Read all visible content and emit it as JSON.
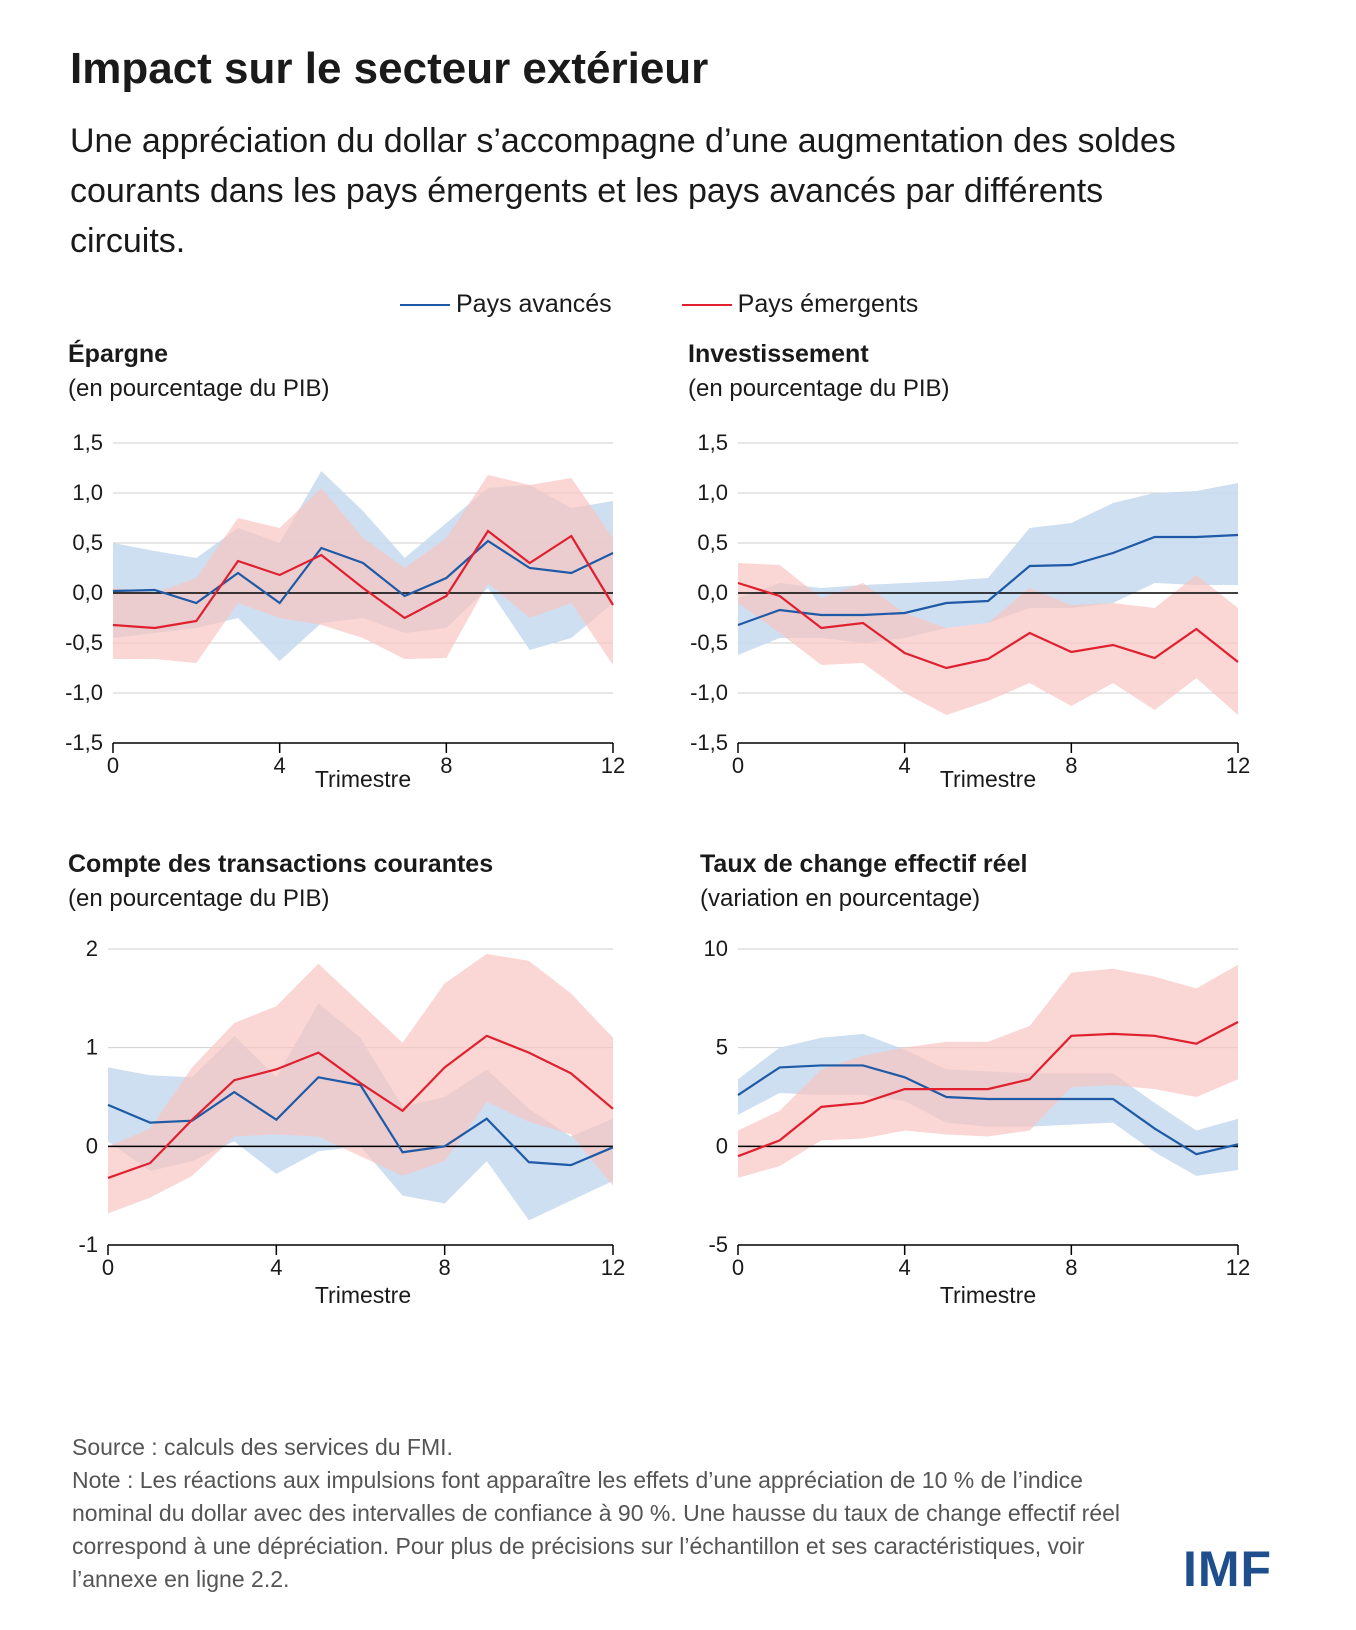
{
  "header": {
    "title": "Impact sur le secteur extérieur",
    "subtitle": "Une appréciation du dollar s’accompagne d’une augmentation des soldes courants dans les pays émergents et les pays avancés par différents circuits."
  },
  "legend": {
    "advanced": "Pays avancés",
    "emerging": "Pays émergents"
  },
  "colors": {
    "advanced_line": "#1f5aa6",
    "advanced_band": "#c5d9ee",
    "emerging_line": "#e0202f",
    "emerging_band": "#f8c4c2"
  },
  "chart_data": [
    {
      "type": "line",
      "title": "Épargne",
      "subtitle": "(en pourcentage du PIB)",
      "xlabel": "Trimestre",
      "x": [
        0,
        1,
        2,
        3,
        4,
        5,
        6,
        7,
        8,
        9,
        10,
        11,
        12
      ],
      "xticks": [
        0,
        4,
        8,
        12
      ],
      "xtick_labels": [
        "0",
        "4",
        "8",
        "12"
      ],
      "ylim": [
        -1.5,
        1.5
      ],
      "yticks": [
        -1.5,
        -1.0,
        -0.5,
        0.0,
        0.5,
        1.0,
        1.5
      ],
      "ytick_labels": [
        "-1,5",
        "-1,0",
        "-0,5",
        "0,0",
        "0,5",
        "1,0",
        "1,5"
      ],
      "series": [
        {
          "name": "Pays avancés",
          "values": [
            0.02,
            0.03,
            -0.1,
            0.2,
            -0.1,
            0.45,
            0.3,
            -0.03,
            0.15,
            0.52,
            0.25,
            0.2,
            0.4
          ],
          "lower": [
            -0.45,
            -0.4,
            -0.35,
            -0.25,
            -0.68,
            -0.3,
            -0.25,
            -0.4,
            -0.35,
            0.05,
            -0.57,
            -0.45,
            -0.1
          ],
          "upper": [
            0.5,
            0.42,
            0.35,
            0.65,
            0.5,
            1.22,
            0.82,
            0.35,
            0.7,
            1.05,
            1.08,
            0.85,
            0.92
          ]
        },
        {
          "name": "Pays émergents",
          "values": [
            -0.32,
            -0.35,
            -0.28,
            0.32,
            0.18,
            0.38,
            0.05,
            -0.25,
            -0.03,
            0.62,
            0.3,
            0.57,
            -0.12
          ],
          "lower": [
            -0.66,
            -0.66,
            -0.7,
            -0.1,
            -0.25,
            -0.32,
            -0.45,
            -0.66,
            -0.65,
            0.1,
            -0.25,
            -0.1,
            -0.72
          ],
          "upper": [
            0.05,
            0.0,
            0.15,
            0.75,
            0.65,
            1.05,
            0.55,
            0.25,
            0.55,
            1.18,
            1.08,
            1.15,
            0.55
          ]
        }
      ]
    },
    {
      "type": "line",
      "title": "Investissement",
      "subtitle": "(en pourcentage du PIB)",
      "xlabel": "Trimestre",
      "x": [
        0,
        1,
        2,
        3,
        4,
        5,
        6,
        7,
        8,
        9,
        10,
        11,
        12
      ],
      "xticks": [
        0,
        4,
        8,
        12
      ],
      "xtick_labels": [
        "0",
        "4",
        "8",
        "12"
      ],
      "ylim": [
        -1.5,
        1.5
      ],
      "yticks": [
        -1.5,
        -1.0,
        -0.5,
        0.0,
        0.5,
        1.0,
        1.5
      ],
      "ytick_labels": [
        "-1,5",
        "-1,0",
        "-0,5",
        "0,0",
        "0,5",
        "1,0",
        "1,5"
      ],
      "series": [
        {
          "name": "Pays avancés",
          "values": [
            -0.32,
            -0.17,
            -0.22,
            -0.22,
            -0.2,
            -0.1,
            -0.08,
            0.27,
            0.28,
            0.4,
            0.56,
            0.56,
            0.58
          ],
          "lower": [
            -0.62,
            -0.45,
            -0.45,
            -0.5,
            -0.45,
            -0.35,
            -0.3,
            -0.15,
            -0.15,
            -0.1,
            0.1,
            0.08,
            0.08
          ],
          "upper": [
            -0.05,
            0.1,
            0.05,
            0.08,
            0.1,
            0.12,
            0.15,
            0.65,
            0.7,
            0.9,
            1.0,
            1.02,
            1.1
          ]
        },
        {
          "name": "Pays émergents",
          "values": [
            0.1,
            -0.03,
            -0.35,
            -0.3,
            -0.6,
            -0.75,
            -0.66,
            -0.4,
            -0.59,
            -0.52,
            -0.65,
            -0.36,
            -0.69
          ],
          "lower": [
            -0.1,
            -0.4,
            -0.72,
            -0.7,
            -1.0,
            -1.22,
            -1.08,
            -0.9,
            -1.13,
            -0.9,
            -1.17,
            -0.85,
            -1.22
          ],
          "upper": [
            0.3,
            0.28,
            -0.05,
            0.1,
            -0.2,
            -0.35,
            -0.3,
            0.05,
            -0.12,
            -0.1,
            -0.15,
            0.18,
            -0.15
          ]
        }
      ]
    },
    {
      "type": "line",
      "title": "Compte des transactions courantes",
      "subtitle": "(en pourcentage du PIB)",
      "xlabel": "Trimestre",
      "x": [
        0,
        1,
        2,
        3,
        4,
        5,
        6,
        7,
        8,
        9,
        10,
        11,
        12
      ],
      "xticks": [
        0,
        4,
        8,
        12
      ],
      "xtick_labels": [
        "0",
        "4",
        "8",
        "12"
      ],
      "ylim": [
        -1,
        2
      ],
      "yticks": [
        -1,
        0,
        1,
        2
      ],
      "ytick_labels": [
        "-1",
        "0",
        "1",
        "2"
      ],
      "series": [
        {
          "name": "Pays avancés",
          "values": [
            0.42,
            0.24,
            0.26,
            0.55,
            0.27,
            0.7,
            0.62,
            -0.06,
            0.0,
            0.28,
            -0.16,
            -0.19,
            -0.01
          ],
          "lower": [
            0.05,
            -0.25,
            -0.15,
            0.05,
            -0.28,
            -0.05,
            0.0,
            -0.5,
            -0.58,
            -0.15,
            -0.75,
            -0.55,
            -0.35
          ],
          "upper": [
            0.8,
            0.72,
            0.7,
            1.12,
            0.7,
            1.45,
            1.1,
            0.4,
            0.5,
            0.78,
            0.38,
            0.1,
            0.28
          ]
        },
        {
          "name": "Pays émergents",
          "values": [
            -0.32,
            -0.17,
            0.27,
            0.67,
            0.78,
            0.95,
            0.64,
            0.36,
            0.8,
            1.12,
            0.95,
            0.74,
            0.38
          ],
          "lower": [
            -0.68,
            -0.52,
            -0.3,
            0.1,
            0.12,
            0.1,
            -0.1,
            -0.3,
            -0.15,
            0.45,
            0.25,
            0.12,
            -0.4
          ],
          "upper": [
            0.0,
            0.18,
            0.8,
            1.25,
            1.42,
            1.85,
            1.45,
            1.05,
            1.65,
            1.95,
            1.88,
            1.55,
            1.1
          ]
        }
      ]
    },
    {
      "type": "line",
      "title": "Taux de change effectif réel",
      "subtitle": "(variation en pourcentage)",
      "xlabel": "Trimestre",
      "x": [
        0,
        1,
        2,
        3,
        4,
        5,
        6,
        7,
        8,
        9,
        10,
        11,
        12
      ],
      "xticks": [
        0,
        4,
        8,
        12
      ],
      "xtick_labels": [
        "0",
        "4",
        "8",
        "12"
      ],
      "ylim": [
        -5,
        10
      ],
      "yticks": [
        -5,
        0,
        5,
        10
      ],
      "ytick_labels": [
        "-5",
        "0",
        "5",
        "10"
      ],
      "series": [
        {
          "name": "Pays avancés",
          "values": [
            2.6,
            4.0,
            4.1,
            4.1,
            3.5,
            2.5,
            2.4,
            2.4,
            2.4,
            2.4,
            0.9,
            -0.4,
            0.1
          ],
          "lower": [
            1.6,
            2.7,
            2.6,
            2.6,
            2.3,
            1.2,
            1.0,
            1.0,
            1.1,
            1.2,
            -0.3,
            -1.5,
            -1.2
          ],
          "upper": [
            3.4,
            5.0,
            5.5,
            5.7,
            4.9,
            3.9,
            3.8,
            3.7,
            3.7,
            3.7,
            2.2,
            0.8,
            1.4
          ]
        },
        {
          "name": "Pays émergents",
          "values": [
            -0.5,
            0.3,
            2.0,
            2.2,
            2.9,
            2.9,
            2.9,
            3.4,
            5.6,
            5.7,
            5.6,
            5.2,
            6.3
          ],
          "lower": [
            -1.6,
            -1.0,
            0.3,
            0.4,
            0.8,
            0.6,
            0.5,
            0.8,
            3.0,
            3.1,
            2.9,
            2.5,
            3.4
          ],
          "upper": [
            0.8,
            1.8,
            3.9,
            4.6,
            5.0,
            5.3,
            5.3,
            6.1,
            8.8,
            9.0,
            8.6,
            8.0,
            9.2
          ]
        }
      ]
    }
  ],
  "footer": {
    "source": "Source : calculs des services du FMI.",
    "note": "Note : Les réactions aux impulsions font apparaître les effets d’une appréciation de 10 % de l’indice nominal du dollar avec des intervalles de confiance à 90 %. Une hausse du taux de change effectif réel correspond à une dépréciation. Pour plus de précisions sur l’échantillon et ses caractéristiques, voir l’annexe en ligne 2.2."
  },
  "logo": {
    "text": "IMF"
  }
}
